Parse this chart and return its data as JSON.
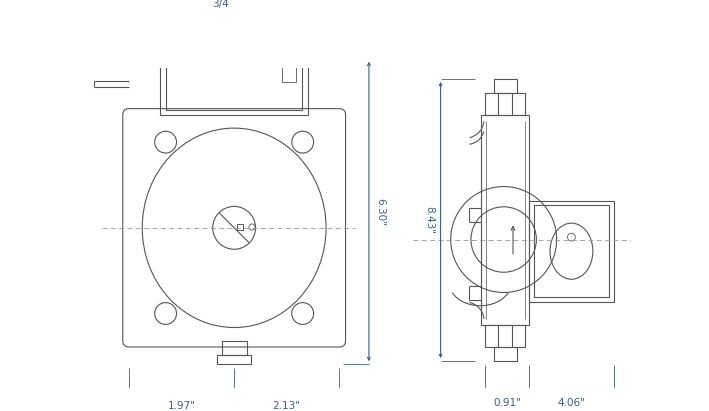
{
  "bg_color": "#ffffff",
  "line_color": "#555555",
  "dim_color": "#3a5f8a",
  "fig_width": 7.09,
  "fig_height": 4.11,
  "dpi": 100,
  "front_view": {
    "label_34": "3/4",
    "dim_630": "6.30\"",
    "dim_197": "1.97\"",
    "dim_213": "2.13\""
  },
  "side_view": {
    "dim_843": "8.43\"",
    "dim_091": "0.91\"",
    "dim_406": "4.06\""
  }
}
